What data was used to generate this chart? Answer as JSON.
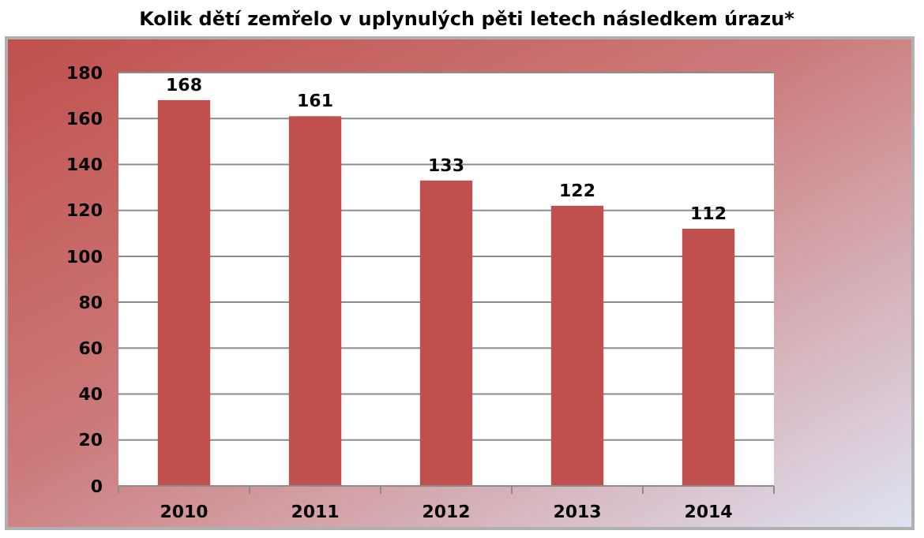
{
  "chart_data": {
    "type": "bar",
    "title": "Kolik dětí zemřelo v uplynulých pěti letech následkem úrazu*",
    "categories": [
      "2010",
      "2011",
      "2012",
      "2013",
      "2014"
    ],
    "values": [
      168,
      161,
      133,
      122,
      112
    ],
    "color": "#c0504d",
    "ylim": [
      0,
      180
    ],
    "yticks": [
      0,
      20,
      40,
      60,
      80,
      100,
      120,
      140,
      160,
      180
    ],
    "grid": "y",
    "data_labels": true
  }
}
